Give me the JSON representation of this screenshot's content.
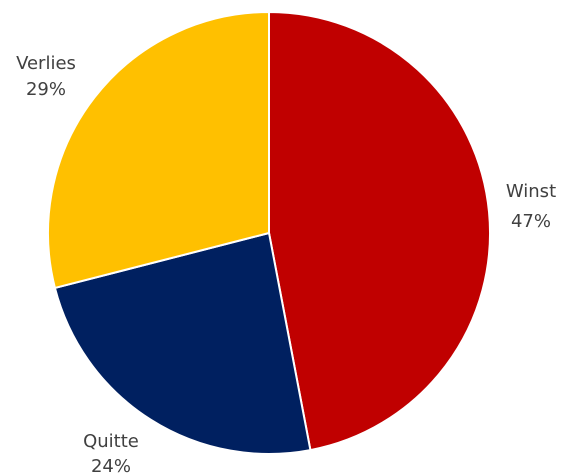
{
  "chart_data": {
    "type": "pie",
    "title": "",
    "slices": [
      {
        "label": "Winst",
        "value": 47,
        "display": "47%",
        "color": "#C00000"
      },
      {
        "label": "Quitte",
        "value": 24,
        "display": "24%",
        "color": "#002060"
      },
      {
        "label": "Verlies",
        "value": 29,
        "display": "29%",
        "color": "#FFC000"
      }
    ],
    "start_angle": "12 o'clock",
    "direction": "clockwise",
    "legend": "none",
    "data_labels": "outside"
  }
}
